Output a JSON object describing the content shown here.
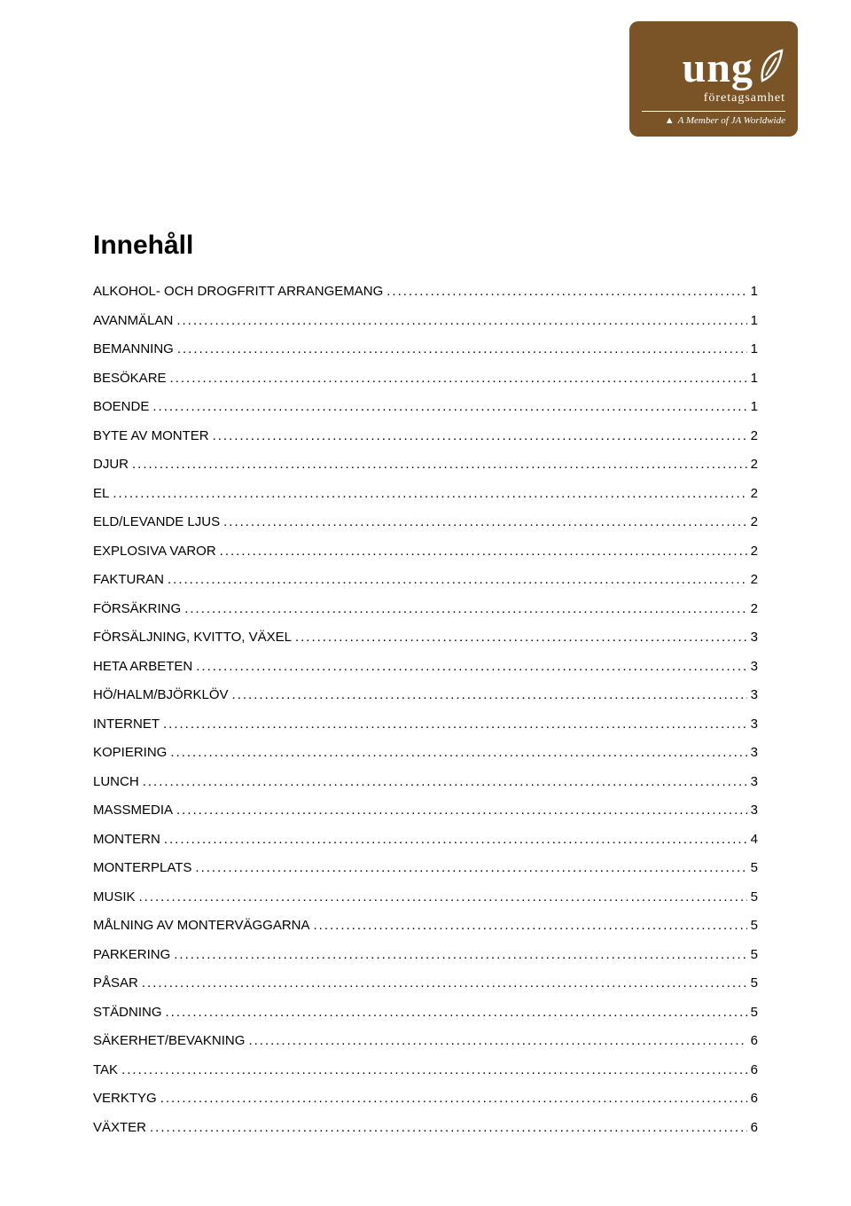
{
  "logo": {
    "main": "ung",
    "sub": "företagsamhet",
    "member": "A Member of JA Worldwide",
    "bg_color": "#7a5426",
    "text_color": "#ffffff"
  },
  "heading": "Innehåll",
  "toc": [
    {
      "label": "ALKOHOL- OCH DROGFRITT ARRANGEMANG",
      "page": "1"
    },
    {
      "label": "AVANMÄLAN",
      "page": "1"
    },
    {
      "label": "BEMANNING",
      "page": "1"
    },
    {
      "label": "BESÖKARE",
      "page": "1"
    },
    {
      "label": "BOENDE",
      "page": "1"
    },
    {
      "label": "BYTE AV MONTER",
      "page": "2"
    },
    {
      "label": "DJUR",
      "page": "2"
    },
    {
      "label": "EL",
      "page": "2"
    },
    {
      "label": "ELD/LEVANDE LJUS",
      "page": "2"
    },
    {
      "label": "EXPLOSIVA VAROR",
      "page": "2"
    },
    {
      "label": "FAKTURAN",
      "page": "2"
    },
    {
      "label": "FÖRSÄKRING",
      "page": "2"
    },
    {
      "label": "FÖRSÄLJNING, KVITTO, VÄXEL",
      "page": "3"
    },
    {
      "label": "HETA ARBETEN",
      "page": "3"
    },
    {
      "label": "HÖ/HALM/BJÖRKLÖV",
      "page": "3"
    },
    {
      "label": "INTERNET",
      "page": "3"
    },
    {
      "label": "KOPIERING",
      "page": "3"
    },
    {
      "label": "LUNCH",
      "page": "3"
    },
    {
      "label": "MASSMEDIA",
      "page": "3"
    },
    {
      "label": "MONTERN",
      "page": "4"
    },
    {
      "label": "MONTERPLATS",
      "page": "5"
    },
    {
      "label": "MUSIK",
      "page": "5"
    },
    {
      "label": "MÅLNING AV MONTERVÄGGARNA",
      "page": "5"
    },
    {
      "label": "PARKERING",
      "page": "5"
    },
    {
      "label": "PÅSAR",
      "page": "5"
    },
    {
      "label": "STÄDNING",
      "page": "5"
    },
    {
      "label": "SÄKERHET/BEVAKNING",
      "page": "6"
    },
    {
      "label": "TAK",
      "page": "6"
    },
    {
      "label": "VERKTYG",
      "page": "6"
    },
    {
      "label": "VÄXTER",
      "page": "6"
    }
  ]
}
